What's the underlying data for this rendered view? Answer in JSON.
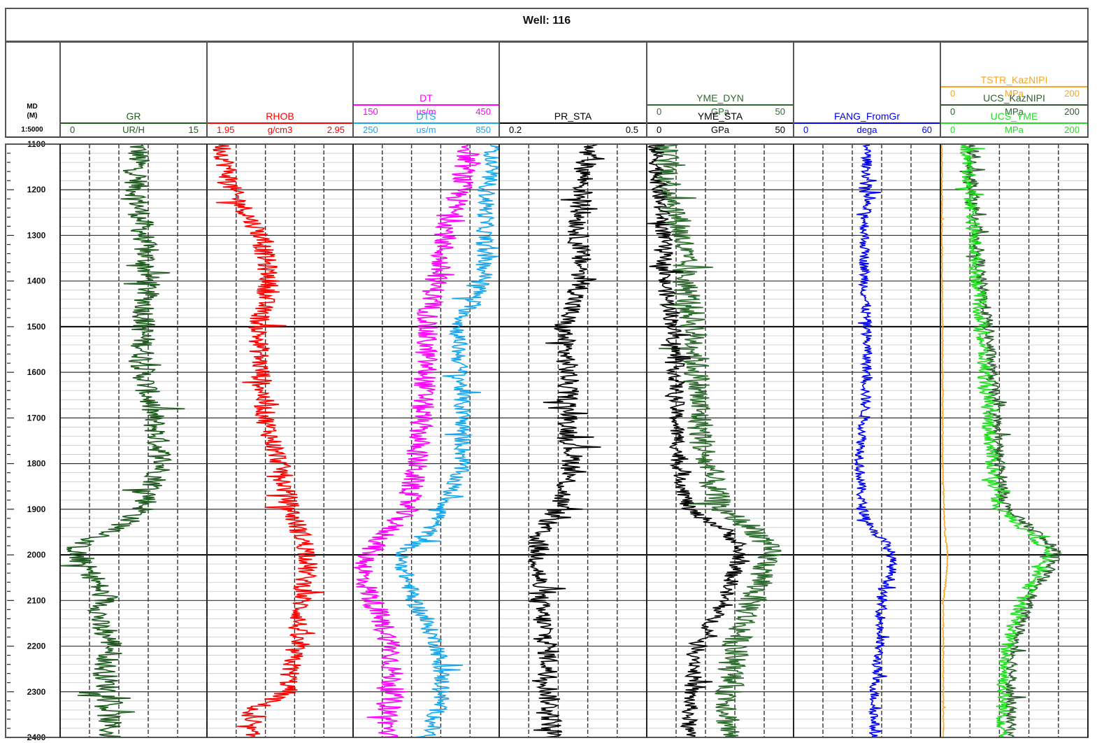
{
  "title": "Well: 116",
  "depth_header": {
    "label": "MD",
    "unit": "(M)",
    "scale": "1:5000"
  },
  "depth_ticks": [
    1100,
    1200,
    1300,
    1400,
    1500,
    1600,
    1700,
    1800,
    1900,
    2000,
    2100,
    2200,
    2300,
    2400
  ],
  "chart_data": {
    "type": "line",
    "title": "Well: 116",
    "y_axis": {
      "label": "MD",
      "unit": "(M)",
      "range": [
        1100,
        2400
      ],
      "reversed": true,
      "major_step": 500,
      "minor_step": 100,
      "fine_step": 20
    },
    "grid": true,
    "tracks": [
      {
        "curves": [
          {
            "name": "GR",
            "unit": "UR/H",
            "min": "0",
            "max": "15",
            "range": [
              0,
              15
            ],
            "color": "#1f5a1f",
            "profile": [
              [
                1100,
                8.0
              ],
              [
                1200,
                7.8
              ],
              [
                1300,
                8.5
              ],
              [
                1400,
                9.0
              ],
              [
                1500,
                8.5
              ],
              [
                1600,
                8.5
              ],
              [
                1700,
                9.5
              ],
              [
                1800,
                10.5
              ],
              [
                1900,
                8.5
              ],
              [
                1950,
                5.5
              ],
              [
                1975,
                2.0
              ],
              [
                2000,
                1.5
              ],
              [
                2050,
                3.5
              ],
              [
                2100,
                4.5
              ],
              [
                2150,
                3.8
              ],
              [
                2200,
                5.5
              ],
              [
                2250,
                4.5
              ],
              [
                2300,
                5.0
              ],
              [
                2400,
                5.0
              ]
            ],
            "amplitude": 1.6
          }
        ]
      },
      {
        "curves": [
          {
            "name": "RHOB",
            "unit": "g/cm3",
            "min": "1.95",
            "max": "2.95",
            "range": [
              1.95,
              2.95
            ],
            "color": "#ff0000",
            "profile": [
              [
                1100,
                2.05
              ],
              [
                1200,
                2.12
              ],
              [
                1300,
                2.32
              ],
              [
                1400,
                2.38
              ],
              [
                1500,
                2.3
              ],
              [
                1600,
                2.32
              ],
              [
                1700,
                2.35
              ],
              [
                1800,
                2.45
              ],
              [
                1900,
                2.52
              ],
              [
                1960,
                2.6
              ],
              [
                2000,
                2.65
              ],
              [
                2100,
                2.6
              ],
              [
                2200,
                2.55
              ],
              [
                2300,
                2.5
              ],
              [
                2350,
                2.2
              ],
              [
                2400,
                2.25
              ]
            ],
            "amplitude": 0.09
          }
        ]
      },
      {
        "curves": [
          {
            "name": "DT",
            "unit": "us/m",
            "min": "150",
            "max": "450",
            "range": [
              150,
              450
            ],
            "color": "#ff00ff",
            "profile": [
              [
                1100,
                390
              ],
              [
                1200,
                370
              ],
              [
                1300,
                340
              ],
              [
                1400,
                320
              ],
              [
                1500,
                300
              ],
              [
                1600,
                300
              ],
              [
                1700,
                290
              ],
              [
                1800,
                280
              ],
              [
                1900,
                260
              ],
              [
                1950,
                220
              ],
              [
                2000,
                180
              ],
              [
                2050,
                170
              ],
              [
                2100,
                190
              ],
              [
                2200,
                230
              ],
              [
                2300,
                230
              ],
              [
                2400,
                220
              ]
            ],
            "amplitude": 30
          },
          {
            "name": "DTS",
            "unit": "us/m",
            "min": "250",
            "max": "850",
            "range": [
              250,
              850
            ],
            "color": "#1aa7ec",
            "profile": [
              [
                1100,
                830
              ],
              [
                1200,
                800
              ],
              [
                1300,
                790
              ],
              [
                1400,
                790
              ],
              [
                1500,
                680
              ],
              [
                1600,
                690
              ],
              [
                1700,
                700
              ],
              [
                1800,
                700
              ],
              [
                1900,
                620
              ],
              [
                1950,
                560
              ],
              [
                2000,
                440
              ],
              [
                2100,
                500
              ],
              [
                2200,
                600
              ],
              [
                2300,
                620
              ],
              [
                2400,
                560
              ]
            ],
            "amplitude": 45
          }
        ]
      },
      {
        "curves": [
          {
            "name": "PR_STA",
            "unit": "",
            "min": "0.2",
            "max": "0.5",
            "range": [
              0.2,
              0.5
            ],
            "color": "#000000",
            "profile": [
              [
                1100,
                0.38
              ],
              [
                1200,
                0.37
              ],
              [
                1300,
                0.36
              ],
              [
                1400,
                0.37
              ],
              [
                1500,
                0.33
              ],
              [
                1600,
                0.34
              ],
              [
                1700,
                0.34
              ],
              [
                1800,
                0.35
              ],
              [
                1900,
                0.32
              ],
              [
                1950,
                0.28
              ],
              [
                2000,
                0.28
              ],
              [
                2100,
                0.28
              ],
              [
                2200,
                0.3
              ],
              [
                2300,
                0.3
              ],
              [
                2400,
                0.31
              ]
            ],
            "amplitude": 0.028
          }
        ]
      },
      {
        "curves": [
          {
            "name": "YME_DYN",
            "unit": "GPa",
            "min": "0",
            "max": "50",
            "range": [
              0,
              50
            ],
            "color": "#2e6b2e",
            "profile": [
              [
                1100,
                6
              ],
              [
                1200,
                8
              ],
              [
                1300,
                12
              ],
              [
                1400,
                13
              ],
              [
                1500,
                16
              ],
              [
                1600,
                17
              ],
              [
                1700,
                18
              ],
              [
                1800,
                20
              ],
              [
                1900,
                25
              ],
              [
                1950,
                38
              ],
              [
                2000,
                42
              ],
              [
                2100,
                36
              ],
              [
                2200,
                30
              ],
              [
                2300,
                28
              ],
              [
                2400,
                28
              ]
            ],
            "amplitude": 6
          },
          {
            "name": "YME_STA",
            "unit": "GPa",
            "min": "0",
            "max": "50",
            "range": [
              0,
              50
            ],
            "color": "#000000",
            "profile": [
              [
                1100,
                3
              ],
              [
                1200,
                4
              ],
              [
                1300,
                6
              ],
              [
                1400,
                6
              ],
              [
                1500,
                9
              ],
              [
                1600,
                10
              ],
              [
                1700,
                10
              ],
              [
                1800,
                11
              ],
              [
                1900,
                14
              ],
              [
                1950,
                28
              ],
              [
                2000,
                32
              ],
              [
                2100,
                26
              ],
              [
                2200,
                18
              ],
              [
                2300,
                15
              ],
              [
                2400,
                14
              ]
            ],
            "amplitude": 3.5
          }
        ]
      },
      {
        "curves": [
          {
            "name": "FANG_FromGr",
            "unit": "dega",
            "min": "0",
            "max": "60",
            "range": [
              0,
              60
            ],
            "color": "#0000ee",
            "profile": [
              [
                1100,
                30
              ],
              [
                1200,
                30
              ],
              [
                1300,
                29
              ],
              [
                1400,
                29
              ],
              [
                1500,
                30
              ],
              [
                1600,
                30
              ],
              [
                1700,
                29
              ],
              [
                1800,
                27
              ],
              [
                1900,
                28
              ],
              [
                1950,
                33
              ],
              [
                1975,
                38
              ],
              [
                2000,
                40
              ],
              [
                2050,
                40
              ],
              [
                2080,
                36
              ],
              [
                2100,
                36
              ],
              [
                2200,
                35
              ],
              [
                2300,
                33
              ],
              [
                2400,
                33
              ]
            ],
            "amplitude": 2.6
          }
        ]
      },
      {
        "curves": [
          {
            "name": "TSTR_KazNIPI",
            "unit": "MPa",
            "min": "0",
            "max": "200",
            "range": [
              0,
              200
            ],
            "color": "#f5a623",
            "profile": [
              [
                1100,
                2
              ],
              [
                1300,
                2
              ],
              [
                1500,
                3
              ],
              [
                1800,
                3
              ],
              [
                1850,
                4
              ],
              [
                1950,
                6
              ],
              [
                2000,
                10
              ],
              [
                2050,
                8
              ],
              [
                2100,
                4
              ],
              [
                2400,
                4
              ]
            ],
            "amplitude": 1.0
          },
          {
            "name": "UCS_KazNIPI",
            "unit": "MPa",
            "min": "0",
            "max": "200",
            "range": [
              0,
              200
            ],
            "color": "#2e5e2e",
            "profile": [
              [
                1100,
                40
              ],
              [
                1200,
                45
              ],
              [
                1300,
                50
              ],
              [
                1400,
                55
              ],
              [
                1500,
                65
              ],
              [
                1600,
                70
              ],
              [
                1700,
                75
              ],
              [
                1800,
                80
              ],
              [
                1900,
                90
              ],
              [
                1950,
                130
              ],
              [
                2000,
                160
              ],
              [
                2100,
                120
              ],
              [
                2200,
                100
              ],
              [
                2300,
                95
              ],
              [
                2400,
                95
              ]
            ],
            "amplitude": 10
          },
          {
            "name": "UCS_YME",
            "unit": "MPa",
            "min": "0",
            "max": "200",
            "range": [
              0,
              200
            ],
            "color": "#22dd22",
            "profile": [
              [
                1100,
                35
              ],
              [
                1200,
                40
              ],
              [
                1300,
                45
              ],
              [
                1400,
                50
              ],
              [
                1500,
                55
              ],
              [
                1600,
                60
              ],
              [
                1700,
                65
              ],
              [
                1800,
                70
              ],
              [
                1900,
                80
              ],
              [
                1950,
                120
              ],
              [
                2000,
                150
              ],
              [
                2100,
                110
              ],
              [
                2200,
                90
              ],
              [
                2300,
                85
              ],
              [
                2400,
                85
              ]
            ],
            "amplitude": 12
          }
        ]
      }
    ]
  }
}
